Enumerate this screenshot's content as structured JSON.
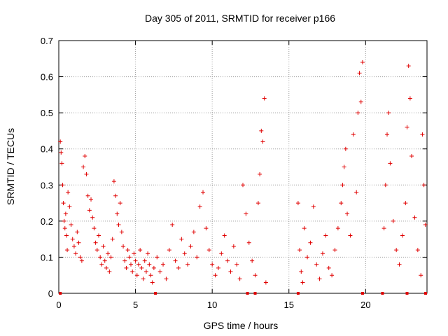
{
  "chart_data": {
    "type": "scatter",
    "title": "Day 305 of 2011, SRMTID for receiver p166",
    "xlabel": "GPS time / hours",
    "ylabel": "SRMTID / TECUs",
    "xlim": [
      0,
      24
    ],
    "ylim": [
      0,
      0.7
    ],
    "xticks": [
      "0",
      "5",
      "10",
      "15",
      "20"
    ],
    "yticks": [
      "0",
      "0.1",
      "0.2",
      "0.3",
      "0.4",
      "0.5",
      "0.6",
      "0.7"
    ],
    "grid": true,
    "marker": "+",
    "color": "#e00000",
    "series": [
      {
        "name": "SRMTID",
        "points": [
          [
            0.1,
            0.42
          ],
          [
            0.15,
            0.39
          ],
          [
            0.2,
            0.36
          ],
          [
            0.25,
            0.3
          ],
          [
            0.3,
            0.25
          ],
          [
            0.35,
            0.2
          ],
          [
            0.4,
            0.18
          ],
          [
            0.45,
            0.22
          ],
          [
            0.5,
            0.16
          ],
          [
            0.55,
            0.12
          ],
          [
            0.6,
            0.28
          ],
          [
            0.7,
            0.24
          ],
          [
            0.8,
            0.19
          ],
          [
            0.9,
            0.15
          ],
          [
            1.0,
            0.13
          ],
          [
            1.1,
            0.11
          ],
          [
            1.2,
            0.17
          ],
          [
            1.3,
            0.14
          ],
          [
            1.4,
            0.1
          ],
          [
            1.5,
            0.09
          ],
          [
            1.6,
            0.35
          ],
          [
            1.7,
            0.38
          ],
          [
            1.8,
            0.33
          ],
          [
            1.9,
            0.27
          ],
          [
            2.0,
            0.23
          ],
          [
            2.1,
            0.26
          ],
          [
            2.2,
            0.21
          ],
          [
            2.3,
            0.18
          ],
          [
            2.4,
            0.14
          ],
          [
            2.5,
            0.12
          ],
          [
            2.6,
            0.16
          ],
          [
            2.7,
            0.1
          ],
          [
            2.8,
            0.08
          ],
          [
            2.9,
            0.13
          ],
          [
            3.0,
            0.09
          ],
          [
            3.1,
            0.07
          ],
          [
            3.2,
            0.11
          ],
          [
            3.3,
            0.06
          ],
          [
            3.4,
            0.1
          ],
          [
            3.5,
            0.15
          ],
          [
            3.6,
            0.31
          ],
          [
            3.7,
            0.27
          ],
          [
            3.8,
            0.22
          ],
          [
            3.9,
            0.19
          ],
          [
            4.0,
            0.25
          ],
          [
            4.1,
            0.17
          ],
          [
            4.2,
            0.13
          ],
          [
            4.3,
            0.09
          ],
          [
            4.4,
            0.07
          ],
          [
            4.5,
            0.12
          ],
          [
            4.6,
            0.1
          ],
          [
            4.7,
            0.08
          ],
          [
            4.8,
            0.06
          ],
          [
            4.9,
            0.11
          ],
          [
            5.0,
            0.09
          ],
          [
            5.1,
            0.05
          ],
          [
            5.2,
            0.08
          ],
          [
            5.3,
            0.12
          ],
          [
            5.4,
            0.07
          ],
          [
            5.5,
            0.04
          ],
          [
            5.6,
            0.09
          ],
          [
            5.7,
            0.06
          ],
          [
            5.8,
            0.11
          ],
          [
            5.9,
            0.08
          ],
          [
            6.0,
            0.05
          ],
          [
            6.1,
            0.03
          ],
          [
            6.2,
            0.07
          ],
          [
            6.4,
            0.1
          ],
          [
            6.6,
            0.06
          ],
          [
            6.8,
            0.08
          ],
          [
            7.0,
            0.04
          ],
          [
            7.2,
            0.12
          ],
          [
            7.4,
            0.19
          ],
          [
            7.6,
            0.09
          ],
          [
            7.8,
            0.07
          ],
          [
            8.0,
            0.15
          ],
          [
            8.2,
            0.11
          ],
          [
            8.4,
            0.08
          ],
          [
            8.6,
            0.13
          ],
          [
            8.8,
            0.17
          ],
          [
            9.0,
            0.1
          ],
          [
            9.2,
            0.24
          ],
          [
            9.4,
            0.28
          ],
          [
            9.6,
            0.18
          ],
          [
            9.8,
            0.12
          ],
          [
            10.0,
            0.08
          ],
          [
            10.2,
            0.05
          ],
          [
            10.4,
            0.07
          ],
          [
            10.6,
            0.11
          ],
          [
            10.8,
            0.16
          ],
          [
            11.0,
            0.09
          ],
          [
            11.2,
            0.06
          ],
          [
            11.4,
            0.13
          ],
          [
            11.6,
            0.08
          ],
          [
            11.8,
            0.04
          ],
          [
            12.0,
            0.3
          ],
          [
            12.2,
            0.22
          ],
          [
            12.4,
            0.14
          ],
          [
            12.6,
            0.09
          ],
          [
            12.8,
            0.05
          ],
          [
            13.0,
            0.25
          ],
          [
            13.1,
            0.33
          ],
          [
            13.2,
            0.45
          ],
          [
            13.3,
            0.42
          ],
          [
            13.4,
            0.54
          ],
          [
            13.5,
            0.03
          ],
          [
            15.6,
            0.25
          ],
          [
            15.7,
            0.12
          ],
          [
            15.8,
            0.06
          ],
          [
            15.9,
            0.03
          ],
          [
            16.0,
            0.18
          ],
          [
            16.2,
            0.1
          ],
          [
            16.4,
            0.14
          ],
          [
            16.6,
            0.24
          ],
          [
            16.8,
            0.08
          ],
          [
            17.0,
            0.04
          ],
          [
            17.2,
            0.11
          ],
          [
            17.4,
            0.16
          ],
          [
            17.6,
            0.07
          ],
          [
            17.8,
            0.05
          ],
          [
            18.0,
            0.12
          ],
          [
            18.2,
            0.18
          ],
          [
            18.4,
            0.25
          ],
          [
            18.5,
            0.3
          ],
          [
            18.6,
            0.35
          ],
          [
            18.7,
            0.4
          ],
          [
            18.8,
            0.22
          ],
          [
            19.0,
            0.16
          ],
          [
            19.2,
            0.44
          ],
          [
            19.4,
            0.28
          ],
          [
            19.5,
            0.5
          ],
          [
            19.6,
            0.61
          ],
          [
            19.7,
            0.53
          ],
          [
            19.8,
            0.64
          ],
          [
            21.2,
            0.18
          ],
          [
            21.3,
            0.3
          ],
          [
            21.4,
            0.44
          ],
          [
            21.5,
            0.5
          ],
          [
            21.6,
            0.36
          ],
          [
            21.8,
            0.2
          ],
          [
            22.0,
            0.12
          ],
          [
            22.2,
            0.08
          ],
          [
            22.4,
            0.16
          ],
          [
            22.6,
            0.25
          ],
          [
            22.7,
            0.46
          ],
          [
            22.8,
            0.63
          ],
          [
            22.9,
            0.54
          ],
          [
            23.0,
            0.38
          ],
          [
            23.2,
            0.21
          ],
          [
            23.4,
            0.12
          ],
          [
            23.6,
            0.05
          ],
          [
            23.7,
            0.44
          ],
          [
            23.8,
            0.3
          ],
          [
            23.9,
            0.19
          ]
        ]
      }
    ],
    "zero_markers_x": [
      0.1,
      6.3,
      12.3,
      12.8,
      15.6,
      19.8,
      21.1,
      22.7,
      24.0
    ]
  }
}
